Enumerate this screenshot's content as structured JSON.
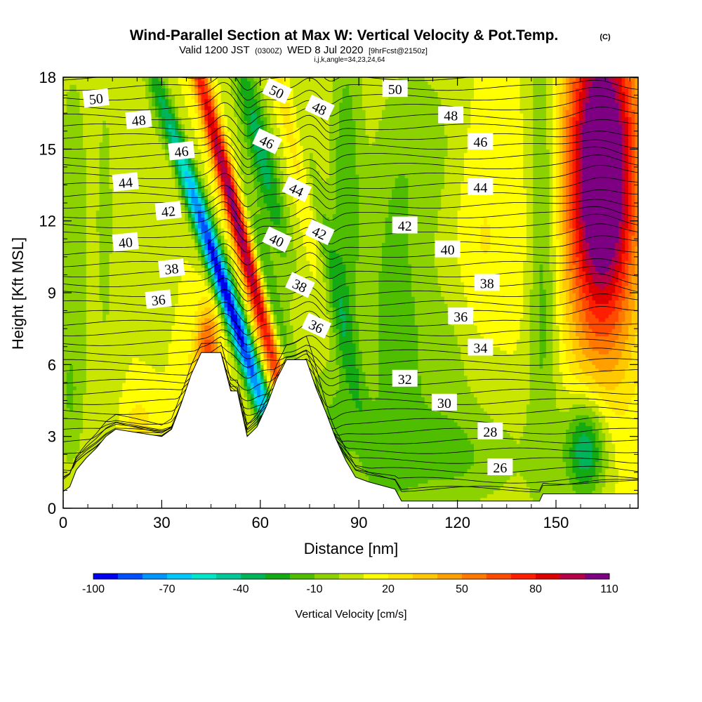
{
  "header": {
    "title": "Wind-Parallel Section at Max W: Vertical Velocity & Pot.Temp.",
    "copyright": "(C)",
    "valid_prefix": "Valid 1200 JST",
    "valid_utc": "(0300Z)",
    "valid_date": "WED 8 Jul 2020",
    "forecast": "[9hrFcst@2150z]",
    "params": "i,j,k,angle=34,23,24,64"
  },
  "chart_data": {
    "type": "heatmap",
    "xlabel": "Distance [nm]",
    "ylabel": "Height [Kft MSL]",
    "xlim": [
      0,
      175
    ],
    "ylim": [
      0,
      18
    ],
    "x_ticks": [
      "0",
      "30",
      "60",
      "90",
      "120",
      "150"
    ],
    "x_tick_values": [
      0,
      30,
      60,
      90,
      120,
      150
    ],
    "y_ticks": [
      "0",
      "3",
      "6",
      "9",
      "12",
      "15",
      "18"
    ],
    "y_tick_values": [
      0,
      3,
      6,
      9,
      12,
      15,
      18
    ],
    "colorbar": {
      "label": "Vertical Velocity [cm/s]",
      "tick_labels": [
        "-100",
        "-70",
        "-40",
        "-10",
        "20",
        "50",
        "80",
        "110"
      ],
      "levels": [
        -100,
        -90,
        -80,
        -70,
        -60,
        -50,
        -40,
        -30,
        -20,
        -10,
        0,
        10,
        20,
        30,
        40,
        50,
        60,
        70,
        80,
        90,
        100,
        110
      ],
      "colors": [
        "#0000f0",
        "#0050ff",
        "#0096ff",
        "#00c8ff",
        "#00e6c8",
        "#00c896",
        "#00b45a",
        "#14aa14",
        "#50be00",
        "#8cd200",
        "#c8e600",
        "#ffff00",
        "#ffe600",
        "#ffc800",
        "#ffa000",
        "#ff7800",
        "#ff4b00",
        "#ff1e00",
        "#dc0000",
        "#b40046",
        "#7d0082"
      ]
    },
    "w_features": [
      {
        "x": 47,
        "z": 10.5,
        "w": -100
      },
      {
        "x": 52,
        "z": 12,
        "w": 85
      },
      {
        "x": 58,
        "z": 14,
        "w": -35
      },
      {
        "x": 80,
        "z": 12,
        "w": -40
      },
      {
        "x": 164,
        "z": 14,
        "w": 110
      },
      {
        "x": 158,
        "z": 2.5,
        "w": -40
      }
    ],
    "theta_contours": [
      {
        "label": "26",
        "x": 133,
        "z": 1.7
      },
      {
        "label": "28",
        "x": 130,
        "z": 3.2
      },
      {
        "label": "30",
        "x": 116,
        "z": 4.4
      },
      {
        "label": "32",
        "x": 104,
        "z": 5.4
      },
      {
        "label": "34",
        "x": 127,
        "z": 6.7
      },
      {
        "label": "36",
        "x": 121,
        "z": 8.0
      },
      {
        "label": "36",
        "x": 29,
        "z": 8.7
      },
      {
        "label": "36",
        "x": 77,
        "z": 7.6
      },
      {
        "label": "38",
        "x": 129,
        "z": 9.4
      },
      {
        "label": "38",
        "x": 33,
        "z": 10.0
      },
      {
        "label": "38",
        "x": 72,
        "z": 9.3
      },
      {
        "label": "40",
        "x": 117,
        "z": 10.8
      },
      {
        "label": "40",
        "x": 19,
        "z": 11.1
      },
      {
        "label": "40",
        "x": 65,
        "z": 11.2
      },
      {
        "label": "42",
        "x": 104,
        "z": 11.8
      },
      {
        "label": "42",
        "x": 32,
        "z": 12.4
      },
      {
        "label": "42",
        "x": 78,
        "z": 11.5
      },
      {
        "label": "44",
        "x": 127,
        "z": 13.4
      },
      {
        "label": "44",
        "x": 19,
        "z": 13.6
      },
      {
        "label": "44",
        "x": 71,
        "z": 13.3
      },
      {
        "label": "46",
        "x": 127,
        "z": 15.3
      },
      {
        "label": "46",
        "x": 36,
        "z": 14.9
      },
      {
        "label": "46",
        "x": 62,
        "z": 15.3
      },
      {
        "label": "48",
        "x": 118,
        "z": 16.4
      },
      {
        "label": "48",
        "x": 23,
        "z": 16.2
      },
      {
        "label": "48",
        "x": 78,
        "z": 16.7
      },
      {
        "label": "50",
        "x": 101,
        "z": 17.5
      },
      {
        "label": "50",
        "x": 10,
        "z": 17.1
      },
      {
        "label": "50",
        "x": 65,
        "z": 17.4
      }
    ],
    "terrain_height": "stepped mountain profile, peaks near 6.5 kft at x≈44-52 nm and 6.2 kft at x≈68-74 nm, valley ~0.3 kft from x≈104 nm"
  }
}
